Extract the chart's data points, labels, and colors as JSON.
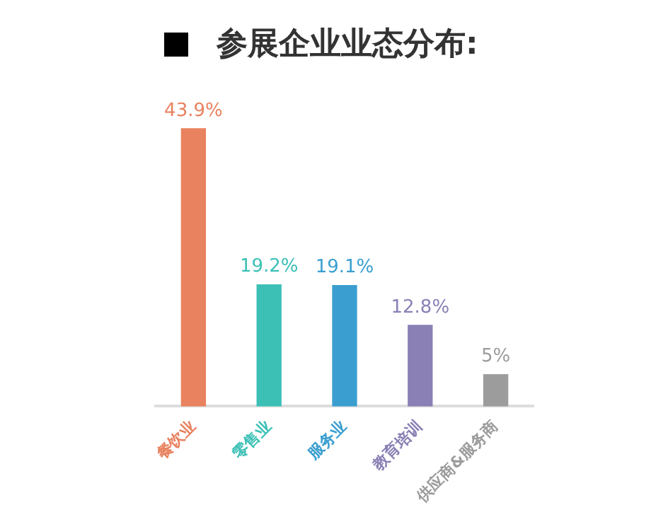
{
  "chart_data": {
    "type": "bar",
    "title": "参展企业业态分布:",
    "categories": [
      "餐饮业",
      "零售业",
      "服务业",
      "教育培训",
      "供应商&服务商"
    ],
    "values": [
      43.9,
      19.2,
      19.1,
      12.8,
      5
    ],
    "colors": [
      "#e8825f",
      "#3cc0b6",
      "#3a9fd0",
      "#8a80b5",
      "#9c9c9c"
    ],
    "value_labels": [
      "43.9%",
      "19.2%",
      "19.1%",
      "12.8%",
      "5%"
    ],
    "grid": false,
    "legend": false
  }
}
